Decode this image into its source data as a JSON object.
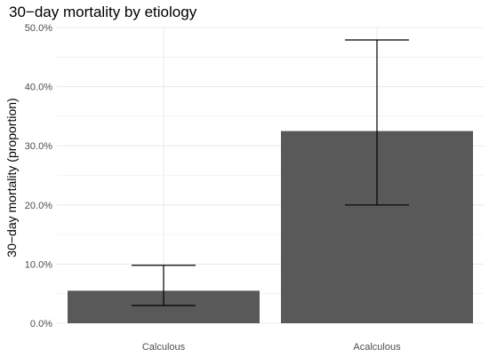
{
  "chart_data": {
    "type": "bar",
    "title": "30−day mortality by etiology",
    "xlabel": "",
    "ylabel": "30−day mortality (proportion)",
    "categories": [
      "Calculous",
      "Acalculous"
    ],
    "values": [
      0.055,
      0.325
    ],
    "error_low": [
      0.03,
      0.2
    ],
    "error_high": [
      0.098,
      0.479
    ],
    "ylim": [
      0,
      0.5
    ],
    "yticks": [
      0,
      0.1,
      0.2,
      0.3,
      0.4,
      0.5
    ],
    "ytick_labels": [
      "0.0%",
      "10.0%",
      "20.0%",
      "30.0%",
      "40.0%",
      "50.0%"
    ],
    "grid": true,
    "legend": "none",
    "bar_color": "#595959",
    "grid_color": "#ebebeb"
  }
}
